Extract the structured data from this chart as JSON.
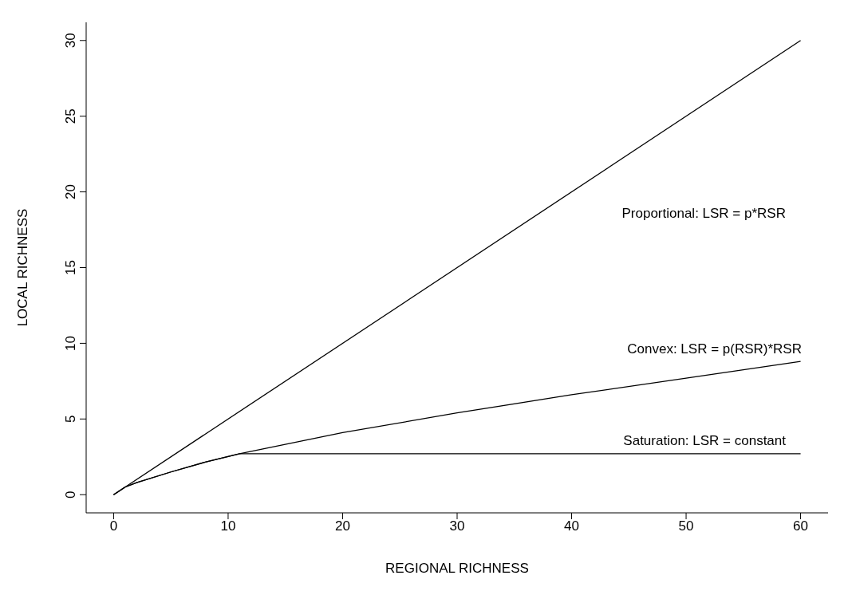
{
  "chart_data": {
    "type": "line",
    "xlabel": "REGIONAL RICHNESS",
    "ylabel": "LOCAL RICHNESS",
    "xlim": [
      -2.4,
      62.4
    ],
    "ylim": [
      -1.2,
      31.2
    ],
    "xticks": [
      0,
      10,
      20,
      30,
      40,
      50,
      60
    ],
    "yticks": [
      0,
      5,
      10,
      15,
      20,
      25,
      30
    ],
    "marker": "none",
    "line_style": "solid",
    "series": [
      {
        "color": "#000000",
        "x": [
          0,
          60
        ],
        "values": [
          0,
          30
        ]
      },
      {
        "color": "#000000",
        "x": [
          0,
          1,
          2,
          5,
          8,
          11,
          20,
          30,
          40,
          50,
          60
        ],
        "values": [
          0,
          0.5,
          0.8,
          1.5,
          2.15,
          2.7,
          4.1,
          5.4,
          6.6,
          7.7,
          8.8
        ]
      },
      {
        "color": "#000000",
        "x": [
          0,
          1,
          2,
          5,
          8,
          11,
          60
        ],
        "values": [
          0,
          0.5,
          0.8,
          1.5,
          2.15,
          2.7,
          2.7
        ]
      }
    ],
    "annotations": [
      "Proportional: LSR = p*RSR",
      "Convex: LSR = p(RSR)*RSR",
      "Saturation: LSR = constant"
    ]
  }
}
